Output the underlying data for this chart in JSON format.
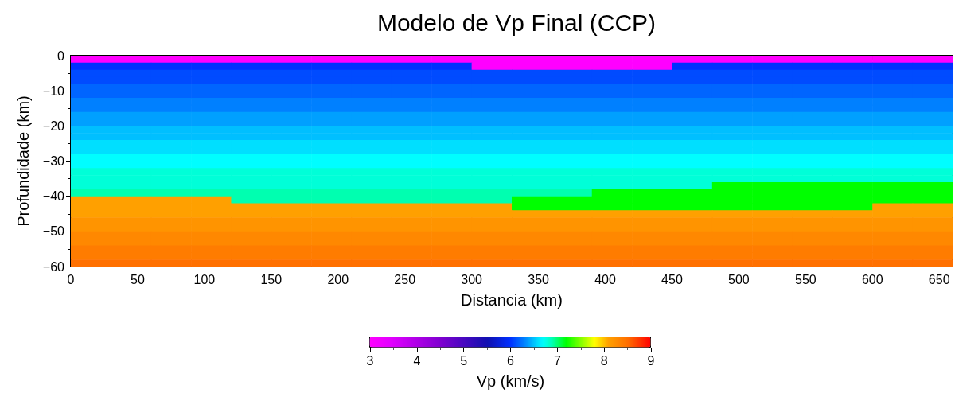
{
  "chart_data": {
    "type": "heatmap",
    "title": "Modelo de Vp Final (CCP)",
    "xlabel": "Distancia (km)",
    "ylabel": "Profundidade (km)",
    "clabel": "Vp (km/s)",
    "x": [
      15,
      45,
      75,
      105,
      135,
      165,
      195,
      225,
      255,
      285,
      315,
      345,
      375,
      405,
      435,
      465,
      495,
      525,
      555,
      585,
      615,
      645
    ],
    "y": [
      -1,
      -3,
      -5,
      -7,
      -9,
      -11,
      -13,
      -15,
      -17,
      -19,
      -21,
      -23,
      -25,
      -27,
      -29,
      -31,
      -33,
      -35,
      -37,
      -39,
      -41,
      -43,
      -45,
      -47,
      -49,
      -51,
      -53,
      -55,
      -57,
      -59
    ],
    "cells": [
      [
        3,
        3,
        3,
        3,
        3,
        3,
        3,
        3,
        3,
        3,
        3,
        3,
        3,
        3,
        3,
        3,
        3,
        3,
        3,
        3,
        3,
        3
      ],
      [
        6,
        6,
        6,
        6,
        6,
        6,
        6,
        6,
        6,
        6,
        3,
        3,
        3,
        3,
        3,
        6,
        6,
        6,
        6,
        6,
        6,
        6
      ],
      [
        6.1,
        6.1,
        6.1,
        6.1,
        6.1,
        6.1,
        6.1,
        6.1,
        6.1,
        6.1,
        6.1,
        6.1,
        6.1,
        6.1,
        6.1,
        6.1,
        6.1,
        6.1,
        6.1,
        6.1,
        6.1,
        6.1
      ],
      [
        6.1,
        6.1,
        6.1,
        6.1,
        6.1,
        6.1,
        6.1,
        6.1,
        6.1,
        6.1,
        6.1,
        6.1,
        6.1,
        6.1,
        6.1,
        6.1,
        6.1,
        6.1,
        6.1,
        6.1,
        6.1,
        6.1
      ],
      [
        6.2,
        6.2,
        6.2,
        6.2,
        6.2,
        6.2,
        6.2,
        6.2,
        6.2,
        6.2,
        6.2,
        6.2,
        6.2,
        6.2,
        6.2,
        6.2,
        6.2,
        6.2,
        6.2,
        6.2,
        6.2,
        6.2
      ],
      [
        6.2,
        6.2,
        6.2,
        6.2,
        6.2,
        6.2,
        6.2,
        6.2,
        6.2,
        6.2,
        6.2,
        6.2,
        6.2,
        6.2,
        6.2,
        6.2,
        6.2,
        6.2,
        6.2,
        6.2,
        6.2,
        6.2
      ],
      [
        6.3,
        6.3,
        6.3,
        6.3,
        6.3,
        6.3,
        6.3,
        6.3,
        6.3,
        6.3,
        6.3,
        6.3,
        6.3,
        6.3,
        6.3,
        6.3,
        6.3,
        6.3,
        6.3,
        6.3,
        6.3,
        6.3
      ],
      [
        6.3,
        6.3,
        6.3,
        6.3,
        6.3,
        6.3,
        6.3,
        6.3,
        6.3,
        6.3,
        6.3,
        6.3,
        6.3,
        6.3,
        6.3,
        6.3,
        6.3,
        6.3,
        6.3,
        6.3,
        6.3,
        6.3
      ],
      [
        6.4,
        6.4,
        6.4,
        6.4,
        6.4,
        6.4,
        6.4,
        6.4,
        6.4,
        6.4,
        6.4,
        6.4,
        6.4,
        6.4,
        6.4,
        6.4,
        6.4,
        6.4,
        6.4,
        6.4,
        6.4,
        6.4
      ],
      [
        6.4,
        6.4,
        6.4,
        6.4,
        6.4,
        6.4,
        6.4,
        6.4,
        6.4,
        6.4,
        6.4,
        6.4,
        6.4,
        6.4,
        6.4,
        6.4,
        6.4,
        6.4,
        6.4,
        6.4,
        6.4,
        6.4
      ],
      [
        6.5,
        6.5,
        6.5,
        6.5,
        6.5,
        6.5,
        6.5,
        6.5,
        6.5,
        6.5,
        6.5,
        6.5,
        6.5,
        6.5,
        6.5,
        6.5,
        6.5,
        6.5,
        6.5,
        6.5,
        6.5,
        6.5
      ],
      [
        6.5,
        6.5,
        6.5,
        6.5,
        6.5,
        6.5,
        6.5,
        6.5,
        6.5,
        6.5,
        6.5,
        6.5,
        6.5,
        6.5,
        6.5,
        6.5,
        6.5,
        6.5,
        6.5,
        6.5,
        6.5,
        6.5
      ],
      [
        6.6,
        6.6,
        6.6,
        6.6,
        6.6,
        6.6,
        6.6,
        6.6,
        6.6,
        6.6,
        6.6,
        6.6,
        6.6,
        6.6,
        6.6,
        6.6,
        6.6,
        6.6,
        6.6,
        6.6,
        6.6,
        6.6
      ],
      [
        6.6,
        6.6,
        6.6,
        6.6,
        6.6,
        6.6,
        6.6,
        6.6,
        6.6,
        6.6,
        6.6,
        6.6,
        6.6,
        6.6,
        6.6,
        6.6,
        6.6,
        6.6,
        6.6,
        6.6,
        6.6,
        6.6
      ],
      [
        6.7,
        6.7,
        6.7,
        6.7,
        6.7,
        6.7,
        6.7,
        6.7,
        6.7,
        6.7,
        6.7,
        6.7,
        6.7,
        6.7,
        6.7,
        6.7,
        6.7,
        6.7,
        6.7,
        6.7,
        6.7,
        6.7
      ],
      [
        6.7,
        6.7,
        6.7,
        6.7,
        6.7,
        6.7,
        6.7,
        6.7,
        6.7,
        6.7,
        6.7,
        6.7,
        6.7,
        6.7,
        6.7,
        6.7,
        6.7,
        6.7,
        6.7,
        6.7,
        6.7,
        6.7
      ],
      [
        6.8,
        6.8,
        6.8,
        6.8,
        6.8,
        6.8,
        6.8,
        6.8,
        6.8,
        6.8,
        6.8,
        6.8,
        6.8,
        6.8,
        6.8,
        6.8,
        6.8,
        6.8,
        6.8,
        6.8,
        6.8,
        6.8
      ],
      [
        6.8,
        6.8,
        6.8,
        6.8,
        6.8,
        6.8,
        6.8,
        6.8,
        6.8,
        6.8,
        6.8,
        6.8,
        6.8,
        6.8,
        6.8,
        6.8,
        6.8,
        6.8,
        6.8,
        6.8,
        6.8,
        6.8
      ],
      [
        6.8,
        6.8,
        6.8,
        6.8,
        6.8,
        6.8,
        6.8,
        6.8,
        6.8,
        6.8,
        6.8,
        6.8,
        6.8,
        6.8,
        6.8,
        6.8,
        7.2,
        7.2,
        7.2,
        7.2,
        7.2,
        7.2
      ],
      [
        6.9,
        6.9,
        6.9,
        6.9,
        6.9,
        6.9,
        6.9,
        6.9,
        6.9,
        6.9,
        6.9,
        6.9,
        6.9,
        7.2,
        7.2,
        7.2,
        7.2,
        7.2,
        7.2,
        7.2,
        7.2,
        7.2
      ],
      [
        8.1,
        8.1,
        8.1,
        8.1,
        6.9,
        6.9,
        6.9,
        6.9,
        6.9,
        6.9,
        6.9,
        7.2,
        7.2,
        7.2,
        7.2,
        7.2,
        7.2,
        7.2,
        7.2,
        7.2,
        7.2,
        7.2
      ],
      [
        8.1,
        8.1,
        8.1,
        8.1,
        8.1,
        8.1,
        8.1,
        8.1,
        8.1,
        8.1,
        8.1,
        7.2,
        7.2,
        7.2,
        7.2,
        7.2,
        7.2,
        7.2,
        7.2,
        7.2,
        8.1,
        8.1
      ],
      [
        8.1,
        8.1,
        8.1,
        8.1,
        8.1,
        8.1,
        8.1,
        8.1,
        8.1,
        8.1,
        8.1,
        8.1,
        8.1,
        8.1,
        8.1,
        8.1,
        8.1,
        8.1,
        8.1,
        8.1,
        8.1,
        8.1
      ],
      [
        8.2,
        8.2,
        8.2,
        8.2,
        8.2,
        8.2,
        8.2,
        8.2,
        8.2,
        8.2,
        8.2,
        8.2,
        8.2,
        8.2,
        8.2,
        8.2,
        8.2,
        8.2,
        8.2,
        8.2,
        8.2,
        8.2
      ],
      [
        8.2,
        8.2,
        8.2,
        8.2,
        8.2,
        8.2,
        8.2,
        8.2,
        8.2,
        8.2,
        8.2,
        8.2,
        8.2,
        8.2,
        8.2,
        8.2,
        8.2,
        8.2,
        8.2,
        8.2,
        8.2,
        8.2
      ],
      [
        8.3,
        8.3,
        8.3,
        8.3,
        8.3,
        8.3,
        8.3,
        8.3,
        8.3,
        8.3,
        8.3,
        8.3,
        8.3,
        8.3,
        8.3,
        8.3,
        8.3,
        8.3,
        8.3,
        8.3,
        8.3,
        8.3
      ],
      [
        8.3,
        8.3,
        8.3,
        8.3,
        8.3,
        8.3,
        8.3,
        8.3,
        8.3,
        8.3,
        8.3,
        8.3,
        8.3,
        8.3,
        8.3,
        8.3,
        8.3,
        8.3,
        8.3,
        8.3,
        8.3,
        8.3
      ],
      [
        8.4,
        8.4,
        8.4,
        8.4,
        8.4,
        8.4,
        8.4,
        8.4,
        8.4,
        8.4,
        8.4,
        8.4,
        8.4,
        8.4,
        8.4,
        8.4,
        8.4,
        8.4,
        8.4,
        8.4,
        8.4,
        8.4
      ],
      [
        8.4,
        8.4,
        8.4,
        8.4,
        8.4,
        8.4,
        8.4,
        8.4,
        8.4,
        8.4,
        8.4,
        8.4,
        8.4,
        8.4,
        8.4,
        8.4,
        8.4,
        8.4,
        8.4,
        8.4,
        8.4,
        8.4
      ],
      [
        8.5,
        8.5,
        8.5,
        8.5,
        8.5,
        8.5,
        8.5,
        8.5,
        8.5,
        8.5,
        8.5,
        8.5,
        8.5,
        8.5,
        8.5,
        8.5,
        8.5,
        8.5,
        8.5,
        8.5,
        8.5,
        8.5
      ]
    ],
    "xlim": [
      0,
      660
    ],
    "xticks": [
      0,
      50,
      100,
      150,
      200,
      250,
      300,
      350,
      400,
      450,
      500,
      550,
      600,
      650
    ],
    "ylim": [
      -60,
      0
    ],
    "yticks": [
      -60,
      -50,
      -40,
      -30,
      -20,
      -10,
      0
    ],
    "clim": [
      3,
      9
    ],
    "cticks": [
      3,
      4,
      5,
      6,
      7,
      8,
      9
    ]
  }
}
